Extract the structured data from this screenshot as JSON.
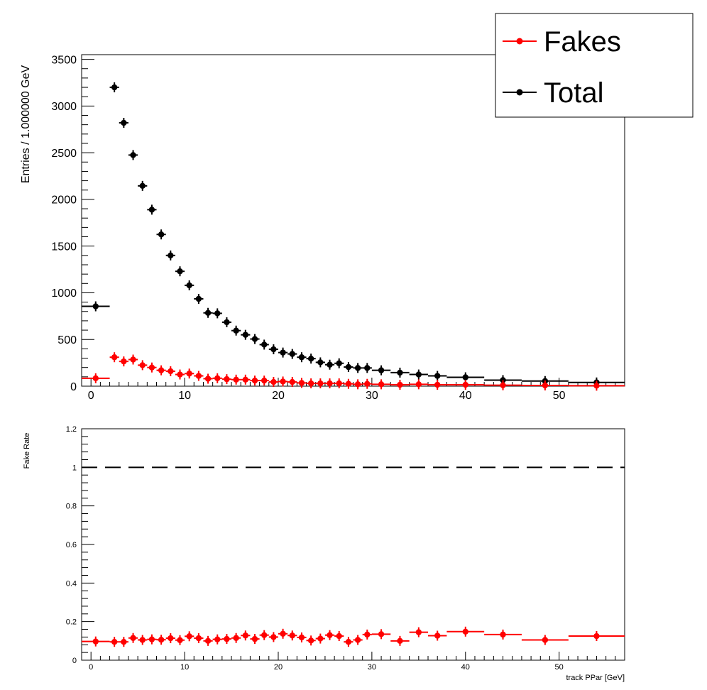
{
  "chart_data": [
    {
      "type": "scatter",
      "ylabel": "Entries / 1.000000 GeV",
      "xlim": [
        -1,
        57
      ],
      "ylim": [
        0,
        3550
      ],
      "x_ticks": [
        0,
        10,
        20,
        30,
        40,
        50
      ],
      "y_ticks": [
        0,
        500,
        1000,
        1500,
        2000,
        2500,
        3000,
        3500
      ],
      "legend_position": "top-right",
      "legend": [
        {
          "label": "Fakes",
          "color": "#ff0000"
        },
        {
          "label": "Total",
          "color": "#000000"
        }
      ],
      "series": [
        {
          "name": "Fakes",
          "color": "#ff0000",
          "points": [
            {
              "x": 0.5,
              "xlo": -1,
              "xhi": 2,
              "y": 85
            },
            {
              "x": 2.5,
              "xlo": 2,
              "xhi": 3,
              "y": 310
            },
            {
              "x": 3.5,
              "xlo": 3,
              "xhi": 4,
              "y": 265
            },
            {
              "x": 4.5,
              "xlo": 4,
              "xhi": 5,
              "y": 285
            },
            {
              "x": 5.5,
              "xlo": 5,
              "xhi": 6,
              "y": 225
            },
            {
              "x": 6.5,
              "xlo": 6,
              "xhi": 7,
              "y": 200
            },
            {
              "x": 7.5,
              "xlo": 7,
              "xhi": 8,
              "y": 170
            },
            {
              "x": 8.5,
              "xlo": 8,
              "xhi": 9,
              "y": 160
            },
            {
              "x": 9.5,
              "xlo": 9,
              "xhi": 10,
              "y": 125
            },
            {
              "x": 10.5,
              "xlo": 10,
              "xhi": 11,
              "y": 135
            },
            {
              "x": 11.5,
              "xlo": 11,
              "xhi": 12,
              "y": 110
            },
            {
              "x": 12.5,
              "xlo": 12,
              "xhi": 13,
              "y": 80
            },
            {
              "x": 13.5,
              "xlo": 13,
              "xhi": 14,
              "y": 85
            },
            {
              "x": 14.5,
              "xlo": 14,
              "xhi": 15,
              "y": 75
            },
            {
              "x": 15.5,
              "xlo": 15,
              "xhi": 16,
              "y": 70
            },
            {
              "x": 16.5,
              "xlo": 16,
              "xhi": 17,
              "y": 70
            },
            {
              "x": 17.5,
              "xlo": 17,
              "xhi": 18,
              "y": 60
            },
            {
              "x": 18.5,
              "xlo": 18,
              "xhi": 19,
              "y": 60
            },
            {
              "x": 19.5,
              "xlo": 19,
              "xhi": 20,
              "y": 45
            },
            {
              "x": 20.5,
              "xlo": 20,
              "xhi": 21,
              "y": 50
            },
            {
              "x": 21.5,
              "xlo": 21,
              "xhi": 22,
              "y": 45
            },
            {
              "x": 22.5,
              "xlo": 22,
              "xhi": 23,
              "y": 35
            },
            {
              "x": 23.5,
              "xlo": 23,
              "xhi": 24,
              "y": 30
            },
            {
              "x": 24.5,
              "xlo": 24,
              "xhi": 25,
              "y": 30
            },
            {
              "x": 25.5,
              "xlo": 25,
              "xhi": 26,
              "y": 30
            },
            {
              "x": 26.5,
              "xlo": 26,
              "xhi": 27,
              "y": 30
            },
            {
              "x": 27.5,
              "xlo": 27,
              "xhi": 28,
              "y": 25
            },
            {
              "x": 28.5,
              "xlo": 28,
              "xhi": 29,
              "y": 20
            },
            {
              "x": 29.5,
              "xlo": 29,
              "xhi": 30,
              "y": 25
            },
            {
              "x": 31,
              "xlo": 30,
              "xhi": 32,
              "y": 20
            },
            {
              "x": 33,
              "xlo": 32,
              "xhi": 34,
              "y": 15
            },
            {
              "x": 35,
              "xlo": 34,
              "xhi": 36,
              "y": 20
            },
            {
              "x": 37,
              "xlo": 36,
              "xhi": 38,
              "y": 15
            },
            {
              "x": 40,
              "xlo": 38,
              "xhi": 42,
              "y": 15
            },
            {
              "x": 44,
              "xlo": 42,
              "xhi": 46,
              "y": 10
            },
            {
              "x": 48.5,
              "xlo": 46,
              "xhi": 51,
              "y": 8
            },
            {
              "x": 54,
              "xlo": 51,
              "xhi": 57,
              "y": 5
            }
          ]
        },
        {
          "name": "Total",
          "color": "#000000",
          "points": [
            {
              "x": 0.5,
              "xlo": -1,
              "xhi": 2,
              "y": 855
            },
            {
              "x": 2.5,
              "xlo": 2,
              "xhi": 3,
              "y": 3200
            },
            {
              "x": 3.5,
              "xlo": 3,
              "xhi": 4,
              "y": 2820
            },
            {
              "x": 4.5,
              "xlo": 4,
              "xhi": 5,
              "y": 2475
            },
            {
              "x": 5.5,
              "xlo": 5,
              "xhi": 6,
              "y": 2145
            },
            {
              "x": 6.5,
              "xlo": 6,
              "xhi": 7,
              "y": 1890
            },
            {
              "x": 7.5,
              "xlo": 7,
              "xhi": 8,
              "y": 1625
            },
            {
              "x": 8.5,
              "xlo": 8,
              "xhi": 9,
              "y": 1400
            },
            {
              "x": 9.5,
              "xlo": 9,
              "xhi": 10,
              "y": 1230
            },
            {
              "x": 10.5,
              "xlo": 10,
              "xhi": 11,
              "y": 1080
            },
            {
              "x": 11.5,
              "xlo": 11,
              "xhi": 12,
              "y": 935
            },
            {
              "x": 12.5,
              "xlo": 12,
              "xhi": 13,
              "y": 785
            },
            {
              "x": 13.5,
              "xlo": 13,
              "xhi": 14,
              "y": 780
            },
            {
              "x": 14.5,
              "xlo": 14,
              "xhi": 15,
              "y": 685
            },
            {
              "x": 15.5,
              "xlo": 15,
              "xhi": 16,
              "y": 595
            },
            {
              "x": 16.5,
              "xlo": 16,
              "xhi": 17,
              "y": 550
            },
            {
              "x": 17.5,
              "xlo": 17,
              "xhi": 18,
              "y": 505
            },
            {
              "x": 18.5,
              "xlo": 18,
              "xhi": 19,
              "y": 445
            },
            {
              "x": 19.5,
              "xlo": 19,
              "xhi": 20,
              "y": 395
            },
            {
              "x": 20.5,
              "xlo": 20,
              "xhi": 21,
              "y": 360
            },
            {
              "x": 21.5,
              "xlo": 21,
              "xhi": 22,
              "y": 345
            },
            {
              "x": 22.5,
              "xlo": 22,
              "xhi": 23,
              "y": 310
            },
            {
              "x": 23.5,
              "xlo": 23,
              "xhi": 24,
              "y": 295
            },
            {
              "x": 24.5,
              "xlo": 24,
              "xhi": 25,
              "y": 255
            },
            {
              "x": 25.5,
              "xlo": 25,
              "xhi": 26,
              "y": 230
            },
            {
              "x": 26.5,
              "xlo": 26,
              "xhi": 27,
              "y": 245
            },
            {
              "x": 27.5,
              "xlo": 27,
              "xhi": 28,
              "y": 205
            },
            {
              "x": 28.5,
              "xlo": 28,
              "xhi": 29,
              "y": 195
            },
            {
              "x": 29.5,
              "xlo": 29,
              "xhi": 30,
              "y": 195
            },
            {
              "x": 31,
              "xlo": 30,
              "xhi": 32,
              "y": 170
            },
            {
              "x": 33,
              "xlo": 32,
              "xhi": 34,
              "y": 145
            },
            {
              "x": 35,
              "xlo": 34,
              "xhi": 36,
              "y": 125
            },
            {
              "x": 37,
              "xlo": 36,
              "xhi": 38,
              "y": 110
            },
            {
              "x": 40,
              "xlo": 38,
              "xhi": 42,
              "y": 95
            },
            {
              "x": 44,
              "xlo": 42,
              "xhi": 46,
              "y": 65
            },
            {
              "x": 48.5,
              "xlo": 46,
              "xhi": 51,
              "y": 55
            },
            {
              "x": 54,
              "xlo": 51,
              "xhi": 57,
              "y": 40
            }
          ]
        }
      ]
    },
    {
      "type": "scatter",
      "ylabel": "Fake Rate",
      "xlabel": "track PPar [GeV]",
      "xlim": [
        -1,
        57
      ],
      "ylim": [
        0,
        1.2
      ],
      "x_ticks": [
        0,
        10,
        20,
        30,
        40,
        50
      ],
      "y_ticks": [
        0,
        0.2,
        0.4,
        0.6,
        0.8,
        1,
        1.2
      ],
      "reference_line": {
        "y": 1,
        "style": "dashed",
        "color": "#000000"
      },
      "series": [
        {
          "color": "#ff0000",
          "points": [
            {
              "x": 0.5,
              "xlo": -1,
              "xhi": 2,
              "y": 0.097
            },
            {
              "x": 2.5,
              "xlo": 2,
              "xhi": 3,
              "y": 0.095
            },
            {
              "x": 3.5,
              "xlo": 3,
              "xhi": 4,
              "y": 0.095
            },
            {
              "x": 4.5,
              "xlo": 4,
              "xhi": 5,
              "y": 0.115
            },
            {
              "x": 5.5,
              "xlo": 5,
              "xhi": 6,
              "y": 0.105
            },
            {
              "x": 6.5,
              "xlo": 6,
              "xhi": 7,
              "y": 0.108
            },
            {
              "x": 7.5,
              "xlo": 7,
              "xhi": 8,
              "y": 0.106
            },
            {
              "x": 8.5,
              "xlo": 8,
              "xhi": 9,
              "y": 0.114
            },
            {
              "x": 9.5,
              "xlo": 9,
              "xhi": 10,
              "y": 0.104
            },
            {
              "x": 10.5,
              "xlo": 10,
              "xhi": 11,
              "y": 0.124
            },
            {
              "x": 11.5,
              "xlo": 11,
              "xhi": 12,
              "y": 0.114
            },
            {
              "x": 12.5,
              "xlo": 12,
              "xhi": 13,
              "y": 0.1
            },
            {
              "x": 13.5,
              "xlo": 13,
              "xhi": 14,
              "y": 0.108
            },
            {
              "x": 14.5,
              "xlo": 14,
              "xhi": 15,
              "y": 0.11
            },
            {
              "x": 15.5,
              "xlo": 15,
              "xhi": 16,
              "y": 0.115
            },
            {
              "x": 16.5,
              "xlo": 16,
              "xhi": 17,
              "y": 0.128
            },
            {
              "x": 17.5,
              "xlo": 17,
              "xhi": 18,
              "y": 0.11
            },
            {
              "x": 18.5,
              "xlo": 18,
              "xhi": 19,
              "y": 0.13
            },
            {
              "x": 19.5,
              "xlo": 19,
              "xhi": 20,
              "y": 0.12
            },
            {
              "x": 20.5,
              "xlo": 20,
              "xhi": 21,
              "y": 0.137
            },
            {
              "x": 21.5,
              "xlo": 21,
              "xhi": 22,
              "y": 0.128
            },
            {
              "x": 22.5,
              "xlo": 22,
              "xhi": 23,
              "y": 0.118
            },
            {
              "x": 23.5,
              "xlo": 23,
              "xhi": 24,
              "y": 0.102
            },
            {
              "x": 24.5,
              "xlo": 24,
              "xhi": 25,
              "y": 0.112
            },
            {
              "x": 25.5,
              "xlo": 25,
              "xhi": 26,
              "y": 0.13
            },
            {
              "x": 26.5,
              "xlo": 26,
              "xhi": 27,
              "y": 0.125
            },
            {
              "x": 27.5,
              "xlo": 27,
              "xhi": 28,
              "y": 0.095
            },
            {
              "x": 28.5,
              "xlo": 28,
              "xhi": 29,
              "y": 0.105
            },
            {
              "x": 29.5,
              "xlo": 29,
              "xhi": 30,
              "y": 0.133
            },
            {
              "x": 31,
              "xlo": 30,
              "xhi": 32,
              "y": 0.135
            },
            {
              "x": 33,
              "xlo": 32,
              "xhi": 34,
              "y": 0.1
            },
            {
              "x": 35,
              "xlo": 34,
              "xhi": 36,
              "y": 0.145
            },
            {
              "x": 37,
              "xlo": 36,
              "xhi": 38,
              "y": 0.127
            },
            {
              "x": 40,
              "xlo": 38,
              "xhi": 42,
              "y": 0.148
            },
            {
              "x": 44,
              "xlo": 42,
              "xhi": 46,
              "y": 0.133
            },
            {
              "x": 48.5,
              "xlo": 46,
              "xhi": 51,
              "y": 0.105
            },
            {
              "x": 54,
              "xlo": 51,
              "xhi": 57,
              "y": 0.125
            }
          ]
        }
      ]
    }
  ]
}
